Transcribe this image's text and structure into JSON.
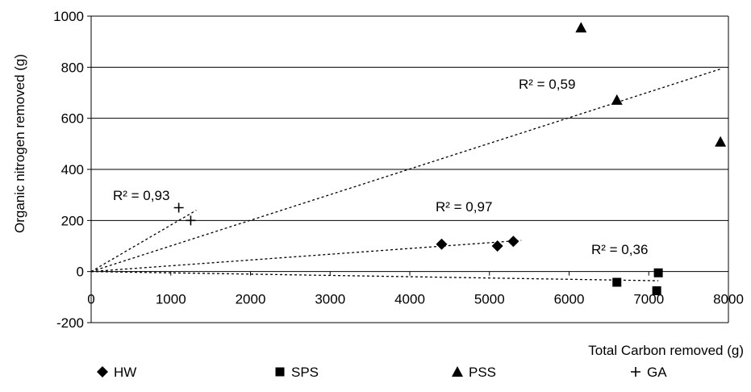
{
  "chart_data": {
    "type": "scatter",
    "title": "",
    "xlabel": "Total Carbon removed (g)",
    "ylabel": "Organic nitrogen removed (g)",
    "xlim": [
      0,
      8000
    ],
    "ylim": [
      -200,
      1000
    ],
    "xticks": [
      0,
      1000,
      2000,
      3000,
      4000,
      5000,
      6000,
      7000,
      8000
    ],
    "yticks": [
      -200,
      0,
      200,
      400,
      600,
      800,
      1000
    ],
    "grid": "horizontal",
    "legend_position": "bottom",
    "series": [
      {
        "name": "HW",
        "marker": "diamond",
        "x": [
          4400,
          5100,
          5300
        ],
        "y": [
          107,
          100,
          118
        ],
        "trendline": {
          "x": [
            0,
            5400
          ],
          "y": [
            0,
            122
          ]
        },
        "r2_label": "R² = 0,97"
      },
      {
        "name": "SPS",
        "marker": "square",
        "x": [
          6600,
          7100,
          7120
        ],
        "y": [
          -42,
          -75,
          -5
        ],
        "trendline": {
          "x": [
            0,
            7120
          ],
          "y": [
            0,
            -36
          ]
        },
        "r2_label": "R² = 0,36"
      },
      {
        "name": "PSS",
        "marker": "triangle",
        "x": [
          6150,
          6600,
          7900
        ],
        "y": [
          955,
          672,
          508
        ],
        "trendline": {
          "x": [
            0,
            7900
          ],
          "y": [
            0,
            793
          ]
        },
        "r2_label": "R² = 0,59"
      },
      {
        "name": "GA",
        "marker": "plus",
        "x": [
          1100,
          1250
        ],
        "y": [
          250,
          200
        ],
        "trendline": {
          "x": [
            0,
            1320
          ],
          "y": [
            0,
            240
          ]
        },
        "r2_label": "R² = 0,93"
      }
    ]
  }
}
